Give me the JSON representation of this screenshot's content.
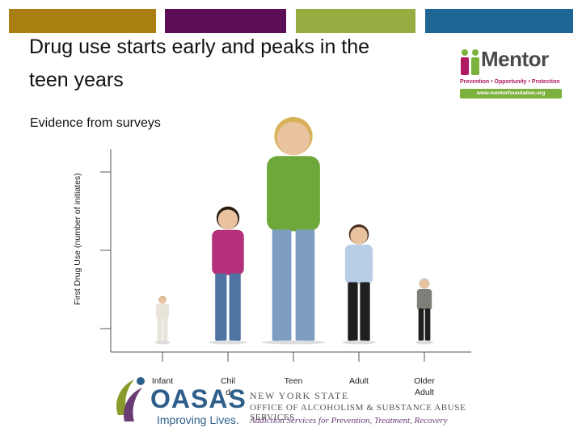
{
  "colors": {
    "band1": "#aa7f12",
    "band2": "#5b0d56",
    "band3": "#96ad42",
    "band4": "#1d6592",
    "axis": "#555555",
    "mentor_magenta": "#b0185f",
    "mentor_green": "#7bb13c",
    "oasas_blue": "#2e5f8a",
    "oasas_purple": "#6a3d75"
  },
  "slide": {
    "title": "Drug use starts early and peaks in the teen years",
    "subtitle": "Evidence from surveys"
  },
  "mentor_logo": {
    "word": "Mentor",
    "tagline": "Prevention • Opportunity • Protection",
    "url": "www.mentorfoundation.org"
  },
  "oasas_logo": {
    "word": "OASAS",
    "tagline": "Improving Lives.",
    "state": "NEW YORK STATE",
    "office": "OFFICE OF ALCOHOLISM & SUBSTANCE ABUSE SERVICES",
    "services": "Addiction Services for Prevention, Treatment, Recovery"
  },
  "chart_data": {
    "type": "bar",
    "ylabel": "First Drug Use (number of initiates)",
    "xlabel": "",
    "categories": [
      "Infant",
      "Child",
      "Teen",
      "Adult",
      "Older Adult"
    ],
    "category_label_lines": [
      [
        "Infant"
      ],
      [
        "Chil",
        "d"
      ],
      [
        "Teen"
      ],
      [
        "Adult"
      ],
      [
        "Older",
        "Adult"
      ]
    ],
    "values": [
      1,
      3,
      5,
      2.6,
      1.4
    ],
    "ylim": [
      0,
      5
    ],
    "y_ticks": 3,
    "grid": false,
    "legend": "none",
    "representation": "bar heights depicted as photographs of people of increasing/decreasing height"
  }
}
